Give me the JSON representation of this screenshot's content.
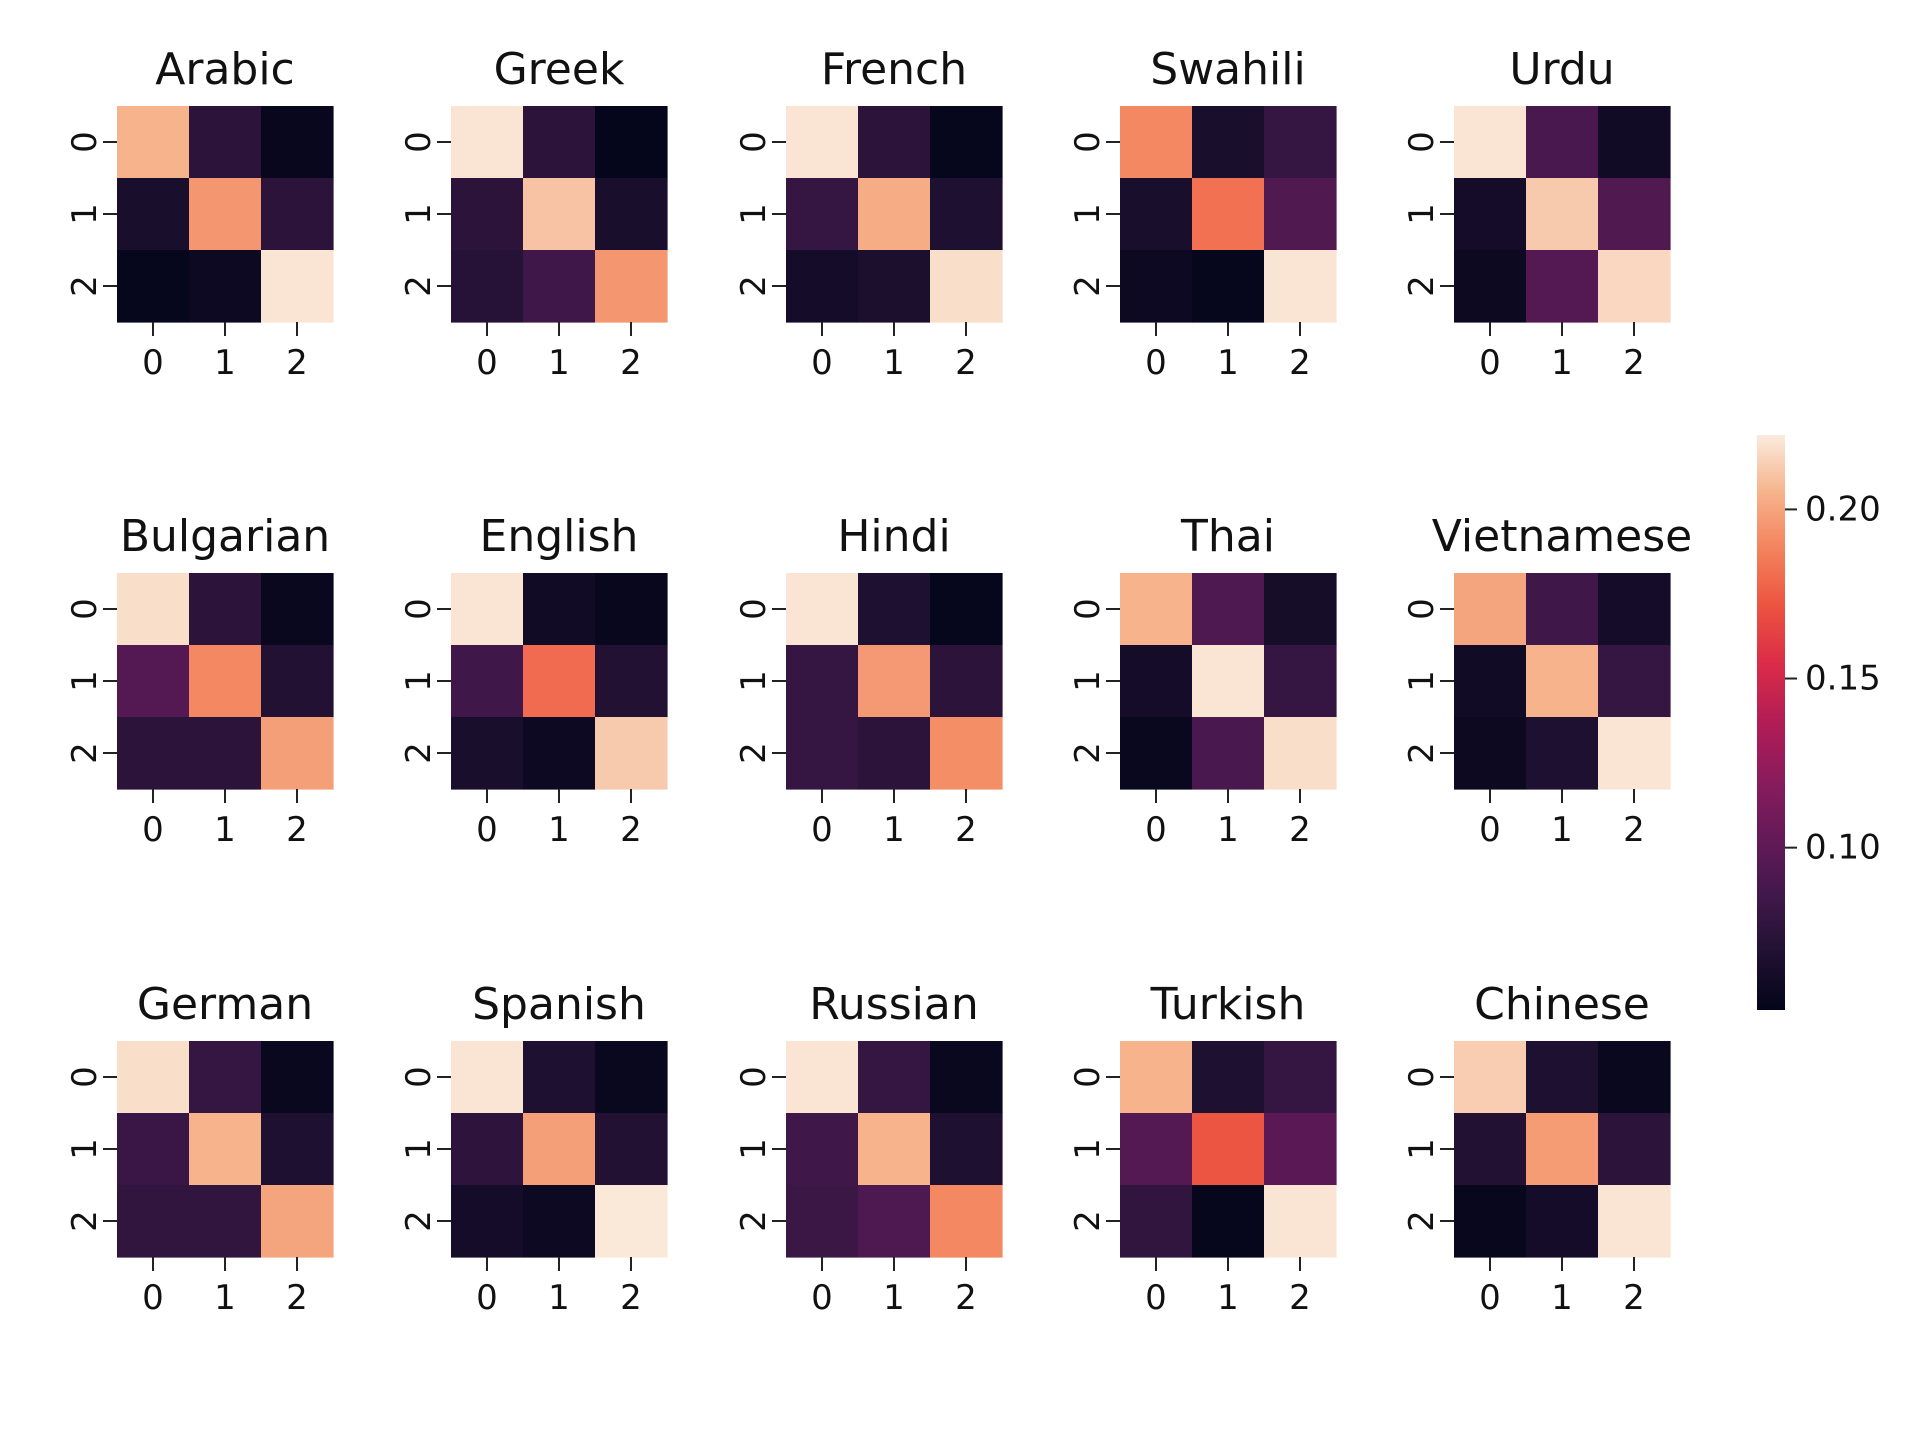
{
  "chart_data": {
    "type": "heatmap",
    "colormap": "rocket",
    "tick_labels": [
      "0",
      "1",
      "2"
    ],
    "colorbar": {
      "vmin": 0.052,
      "vmax": 0.222,
      "ticks": [
        0.1,
        0.15,
        0.2
      ],
      "tick_labels": [
        "0.10",
        "0.15",
        "0.20"
      ]
    },
    "panels": [
      {
        "title": "Arabic",
        "values": [
          [
            0.205,
            0.075,
            0.055
          ],
          [
            0.065,
            0.195,
            0.075
          ],
          [
            0.054,
            0.058,
            0.22
          ]
        ]
      },
      {
        "title": "Greek",
        "values": [
          [
            0.22,
            0.075,
            0.053
          ],
          [
            0.075,
            0.21,
            0.065
          ],
          [
            0.072,
            0.085,
            0.195
          ]
        ]
      },
      {
        "title": "French",
        "values": [
          [
            0.22,
            0.075,
            0.054
          ],
          [
            0.08,
            0.203,
            0.068
          ],
          [
            0.062,
            0.066,
            0.218
          ]
        ]
      },
      {
        "title": "Swahili",
        "values": [
          [
            0.19,
            0.065,
            0.08
          ],
          [
            0.065,
            0.182,
            0.093
          ],
          [
            0.058,
            0.054,
            0.22
          ]
        ]
      },
      {
        "title": "Urdu",
        "values": [
          [
            0.22,
            0.09,
            0.06
          ],
          [
            0.062,
            0.212,
            0.093
          ],
          [
            0.057,
            0.095,
            0.216
          ]
        ]
      },
      {
        "title": "Bulgarian",
        "values": [
          [
            0.218,
            0.075,
            0.056
          ],
          [
            0.095,
            0.19,
            0.07
          ],
          [
            0.075,
            0.075,
            0.198
          ]
        ]
      },
      {
        "title": "English",
        "values": [
          [
            0.22,
            0.06,
            0.055
          ],
          [
            0.085,
            0.18,
            0.07
          ],
          [
            0.065,
            0.058,
            0.212
          ]
        ]
      },
      {
        "title": "Hindi",
        "values": [
          [
            0.22,
            0.068,
            0.054
          ],
          [
            0.08,
            0.196,
            0.075
          ],
          [
            0.08,
            0.075,
            0.192
          ]
        ]
      },
      {
        "title": "Thai",
        "values": [
          [
            0.205,
            0.092,
            0.063
          ],
          [
            0.062,
            0.22,
            0.08
          ],
          [
            0.056,
            0.09,
            0.218
          ]
        ]
      },
      {
        "title": "Vietnamese",
        "values": [
          [
            0.2,
            0.085,
            0.062
          ],
          [
            0.06,
            0.205,
            0.08
          ],
          [
            0.057,
            0.068,
            0.22
          ]
        ]
      },
      {
        "title": "German",
        "values": [
          [
            0.218,
            0.08,
            0.056
          ],
          [
            0.082,
            0.205,
            0.068
          ],
          [
            0.078,
            0.078,
            0.2
          ]
        ]
      },
      {
        "title": "Spanish",
        "values": [
          [
            0.22,
            0.068,
            0.056
          ],
          [
            0.076,
            0.198,
            0.07
          ],
          [
            0.062,
            0.058,
            0.221
          ]
        ]
      },
      {
        "title": "Russian",
        "values": [
          [
            0.22,
            0.08,
            0.056
          ],
          [
            0.085,
            0.205,
            0.068
          ],
          [
            0.083,
            0.092,
            0.19
          ]
        ]
      },
      {
        "title": "Turkish",
        "values": [
          [
            0.205,
            0.068,
            0.08
          ],
          [
            0.095,
            0.172,
            0.098
          ],
          [
            0.078,
            0.054,
            0.22
          ]
        ]
      },
      {
        "title": "Chinese",
        "values": [
          [
            0.213,
            0.068,
            0.056
          ],
          [
            0.07,
            0.197,
            0.075
          ],
          [
            0.055,
            0.062,
            0.22
          ]
        ]
      }
    ]
  }
}
